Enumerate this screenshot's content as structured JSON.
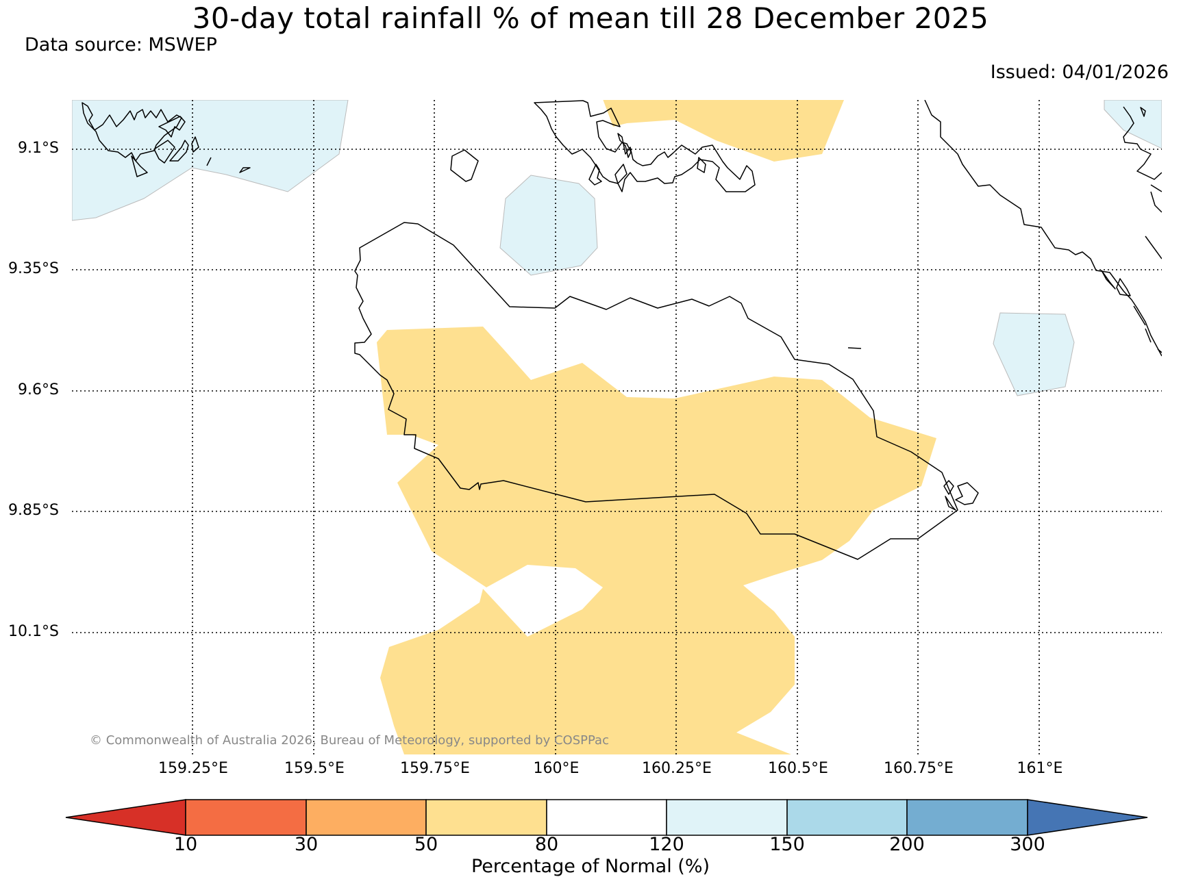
{
  "title": "30-day total rainfall % of mean till 28 December 2025",
  "source": "Data source: MSWEP",
  "issued": "Issued: 04/01/2026",
  "copyright": "© Commonwealth of Australia 2026, Bureau of Meteorology, supported by COSPPac",
  "lat_labels": [
    "9.1°S",
    "9.35°S",
    "9.6°S",
    "9.85°S",
    "10.1°S"
  ],
  "lon_labels": [
    "159.25°E",
    "159.5°E",
    "159.75°E",
    "160°E",
    "160.25°E",
    "160.5°E",
    "160.75°E",
    "161°E"
  ],
  "colorbar": {
    "title": "Percentage of Normal (%)",
    "ticks": [
      "10",
      "30",
      "50",
      "80",
      "120",
      "150",
      "200",
      "300"
    ],
    "colors": [
      "#d73027",
      "#f46d43",
      "#fdae61",
      "#fee090",
      "#ffffff",
      "#e0f3f8",
      "#abd9e9",
      "#74add1",
      "#4575b4"
    ]
  },
  "fill_colors": {
    "dry": "#fee090",
    "wet": "#e0f3f8"
  }
}
